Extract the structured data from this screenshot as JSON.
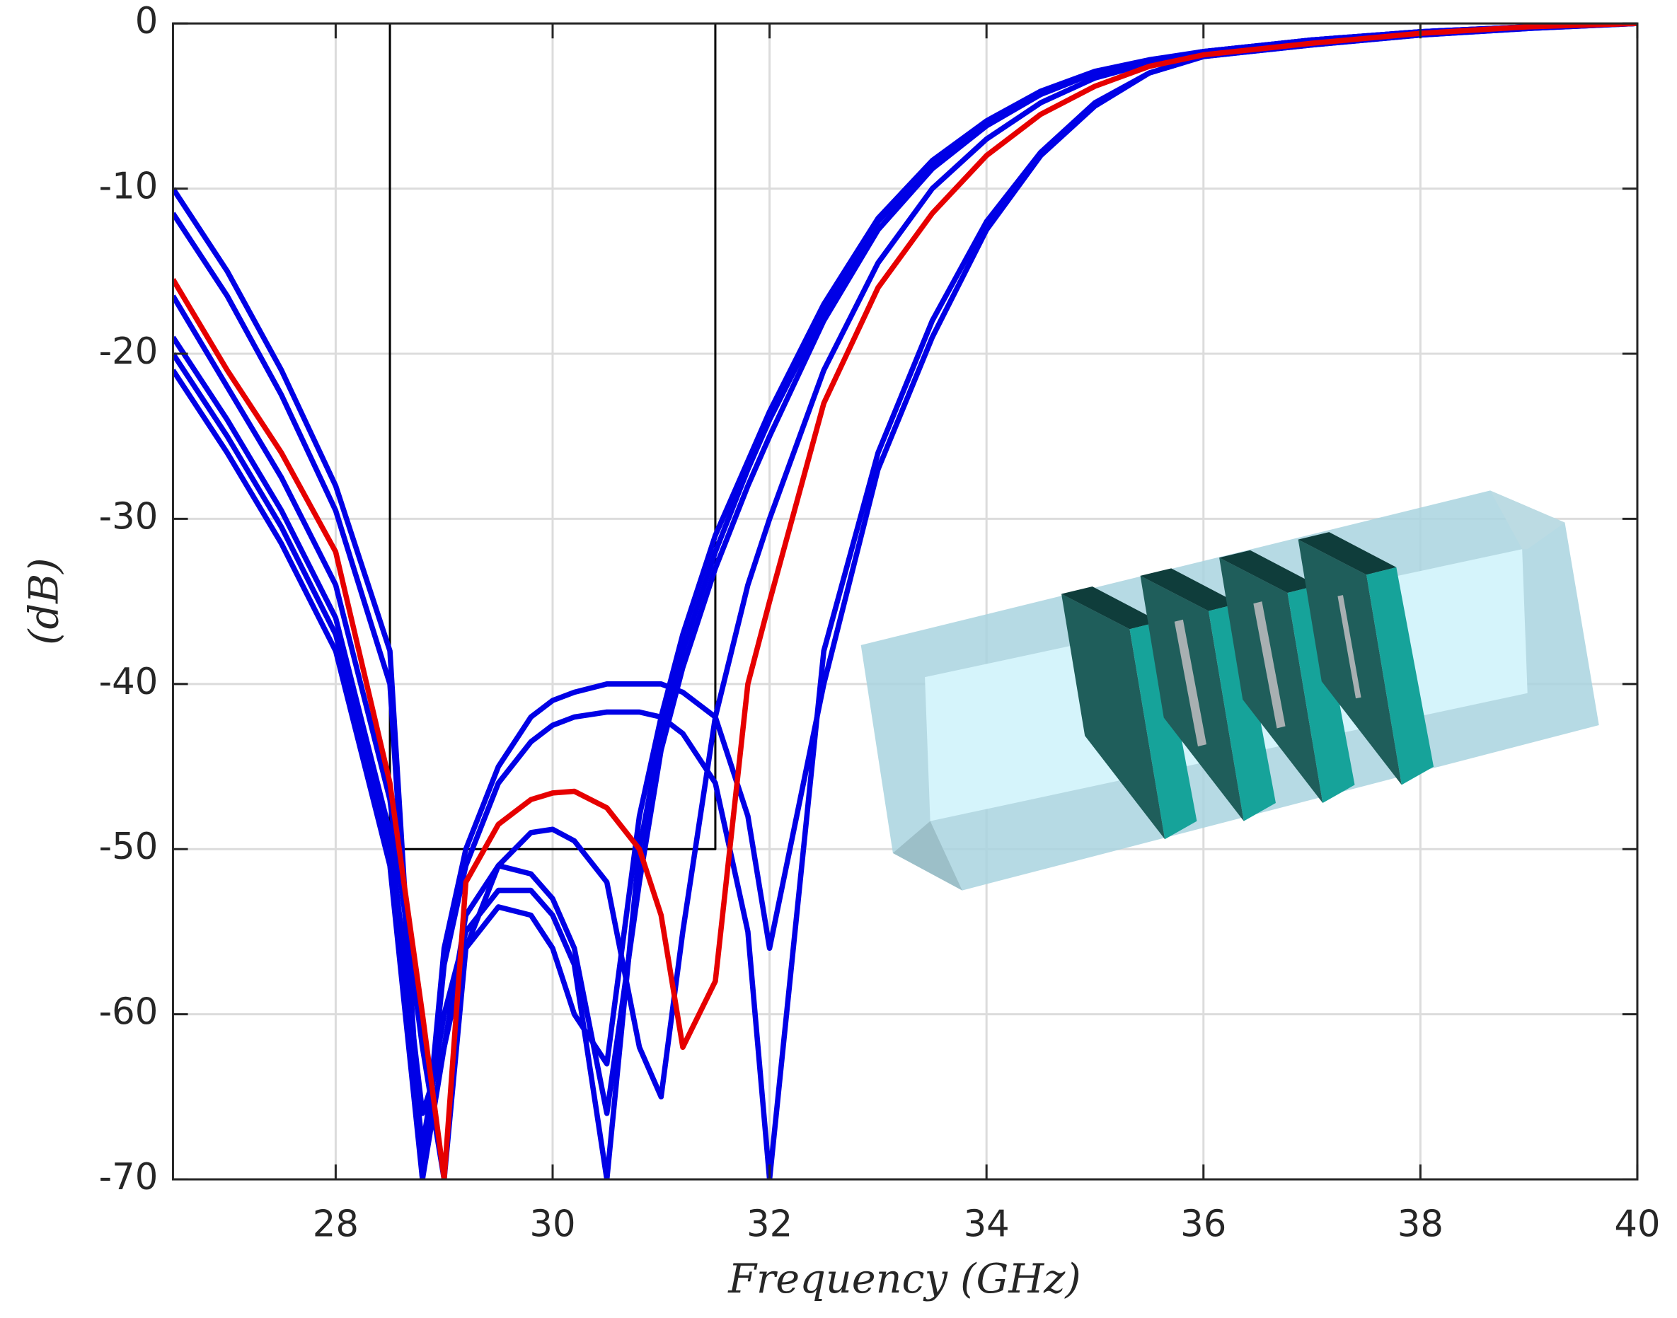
{
  "chart_data": {
    "type": "line",
    "xlabel": "Frequency (GHz)",
    "ylabel": "(dB)",
    "xlim": [
      26.5,
      40
    ],
    "ylim": [
      -70,
      0
    ],
    "xticks": [
      28,
      30,
      32,
      34,
      36,
      38,
      40
    ],
    "yticks": [
      -70,
      -60,
      -50,
      -40,
      -30,
      -20,
      -10,
      0
    ],
    "grid": true,
    "x": [
      26.5,
      27,
      27.5,
      28,
      28.5,
      28.8,
      29,
      29.2,
      29.5,
      29.8,
      30,
      30.2,
      30.5,
      30.8,
      31,
      31.2,
      31.5,
      31.8,
      32,
      32.5,
      33,
      33.5,
      34,
      34.5,
      35,
      35.5,
      36,
      37,
      38,
      39,
      40
    ],
    "series": [
      {
        "color": "#0000e6",
        "values": [
          -10,
          -15,
          -21,
          -28,
          -38,
          -70,
          -56,
          -50,
          -45,
          -42,
          -41,
          -40.5,
          -40,
          -40,
          -40,
          -40.5,
          -42,
          -48,
          -56,
          -40,
          -27,
          -19,
          -12.5,
          -8,
          -5,
          -3,
          -2,
          -1.3,
          -0.7,
          -0.3,
          0
        ]
      },
      {
        "color": "#0000e6",
        "values": [
          -11.5,
          -16.5,
          -22.5,
          -29.5,
          -40,
          -70,
          -57,
          -51,
          -46,
          -43.5,
          -42.5,
          -42,
          -41.7,
          -41.7,
          -42,
          -43,
          -46,
          -55,
          -70,
          -38,
          -26,
          -18,
          -12,
          -7.8,
          -4.8,
          -3,
          -2,
          -1.3,
          -0.7,
          -0.3,
          0
        ]
      },
      {
        "color": "#0000e6",
        "values": [
          -16.5,
          -22,
          -27.5,
          -34,
          -47,
          -62,
          -70,
          -56,
          -51,
          -49,
          -48.8,
          -49.5,
          -52,
          -62,
          -65,
          -55,
          -42,
          -34,
          -30,
          -21,
          -14.5,
          -10,
          -7,
          -4.8,
          -3.3,
          -2.4,
          -1.8,
          -1.1,
          -0.6,
          -0.2,
          0
        ]
      },
      {
        "color": "#0000e6",
        "values": [
          -19,
          -24,
          -29.5,
          -36,
          -49,
          -66,
          -62,
          -54,
          -51,
          -51.5,
          -53,
          -56,
          -66,
          -52,
          -44,
          -39,
          -33,
          -28,
          -25,
          -18,
          -12.5,
          -8.8,
          -6.2,
          -4.3,
          -3,
          -2.3,
          -1.7,
          -1,
          -0.5,
          -0.2,
          0
        ]
      },
      {
        "color": "#0000e6",
        "values": [
          -20,
          -25,
          -30.5,
          -37,
          -50,
          -68,
          -60,
          -55,
          -52.5,
          -52.5,
          -54,
          -57,
          -70,
          -50,
          -43,
          -38,
          -32,
          -27,
          -24,
          -17.5,
          -12,
          -8.5,
          -6,
          -4.2,
          -3,
          -2.3,
          -1.7,
          -1,
          -0.5,
          -0.2,
          0
        ]
      },
      {
        "color": "#0000e6",
        "values": [
          -21,
          -26,
          -31.5,
          -38,
          -51,
          -70,
          -62,
          -56,
          -53.5,
          -54,
          -56,
          -60,
          -63,
          -48,
          -42,
          -37,
          -31,
          -26.5,
          -23.5,
          -17,
          -11.8,
          -8.3,
          -5.9,
          -4.1,
          -2.9,
          -2.2,
          -1.7,
          -1,
          -0.5,
          -0.2,
          0
        ]
      },
      {
        "color": "#e60000",
        "values": [
          -15.5,
          -21,
          -26,
          -32,
          -46,
          -60,
          -70,
          -52,
          -48.5,
          -47,
          -46.6,
          -46.5,
          -47.5,
          -50,
          -54,
          -62,
          -58,
          -40,
          -35,
          -23,
          -16,
          -11.5,
          -8,
          -5.5,
          -3.8,
          -2.6,
          -1.9,
          -1.2,
          -0.6,
          -0.2,
          0
        ]
      }
    ],
    "mask": {
      "color": "#000000",
      "x": [
        28.5,
        28.5,
        31.5,
        31.5
      ],
      "values": [
        0,
        -50,
        -50,
        0
      ]
    }
  }
}
